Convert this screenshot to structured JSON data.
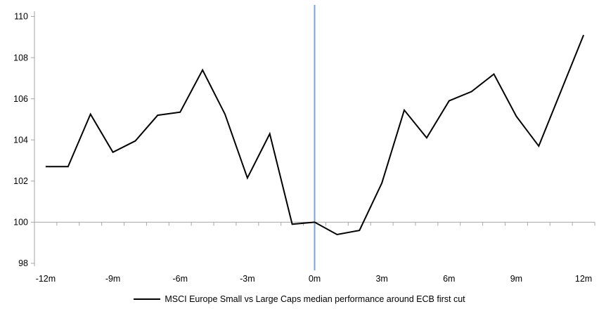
{
  "chart_data": {
    "type": "line",
    "title": "",
    "x": [
      -12,
      -11,
      -10,
      -9,
      -8,
      -7,
      -6,
      -5,
      -4,
      -3,
      -2,
      -1,
      0,
      1,
      2,
      3,
      4,
      5,
      6,
      7,
      8,
      9,
      10,
      11,
      12
    ],
    "series": [
      {
        "name": "MSCI Europe Small vs Large Caps median performance around ECB first cut",
        "color": "#000000",
        "values": [
          102.7,
          102.7,
          105.25,
          103.4,
          103.95,
          105.2,
          105.35,
          107.4,
          105.25,
          102.15,
          104.3,
          99.9,
          100,
          99.4,
          99.6,
          101.9,
          105.45,
          104.1,
          105.9,
          106.35,
          107.2,
          105.15,
          103.7,
          106.4,
          109.1
        ]
      }
    ],
    "x_axis": {
      "tick_labels": [
        {
          "month": -12,
          "label": "-12m"
        },
        {
          "month": -9,
          "label": "-9m"
        },
        {
          "month": -6,
          "label": "-6m"
        },
        {
          "month": -3,
          "label": "-3m"
        },
        {
          "month": 0,
          "label": "0m"
        },
        {
          "month": 3,
          "label": "3m"
        },
        {
          "month": 6,
          "label": "6m"
        },
        {
          "month": 9,
          "label": "9m"
        },
        {
          "month": 12,
          "label": "12m"
        }
      ],
      "minor_ticks_every_month": true,
      "baseline_value": 100
    },
    "y_axis": {
      "min": 98,
      "max": 110,
      "ticks": [
        110,
        108,
        106,
        104,
        102,
        100,
        98
      ]
    },
    "event_line": {
      "x_month": 0,
      "color": "#78A6D4"
    },
    "axis_color": "#A6A6A6",
    "grid": false,
    "legend_label": "MSCI Europe Small vs Large Caps median performance around ECB first cut",
    "legend_position": "bottom-center"
  }
}
